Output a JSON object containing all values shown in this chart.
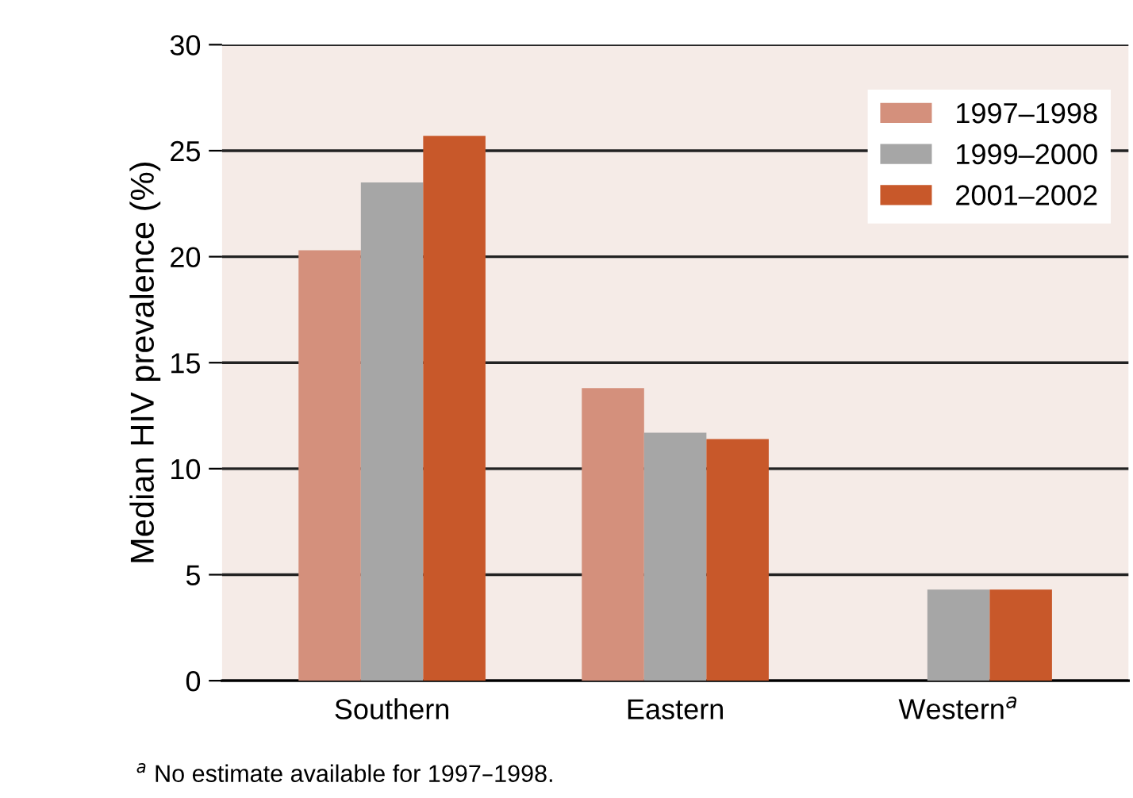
{
  "chart_data": {
    "type": "bar",
    "ylabel": "Median HIV prevalence (%)",
    "categories": [
      "Southern",
      "Eastern",
      "Western$^{a}$"
    ],
    "series": [
      {
        "name": "1997–1998",
        "color": "#d4907c",
        "values": [
          20.3,
          13.8,
          null
        ]
      },
      {
        "name": "1999–2000",
        "color": "#a6a6a6",
        "values": [
          23.5,
          11.7,
          4.3
        ]
      },
      {
        "name": "2001–2002",
        "color": "#c8582a",
        "values": [
          25.7,
          11.4,
          4.3
        ]
      }
    ],
    "ylim": [
      0,
      30
    ],
    "yticks": [
      0,
      5,
      10,
      15,
      20,
      25,
      30
    ],
    "grid": "y",
    "legend": "top right",
    "annotations": [
      "$^{a}$ No estimate available for 1997–1998."
    ]
  }
}
